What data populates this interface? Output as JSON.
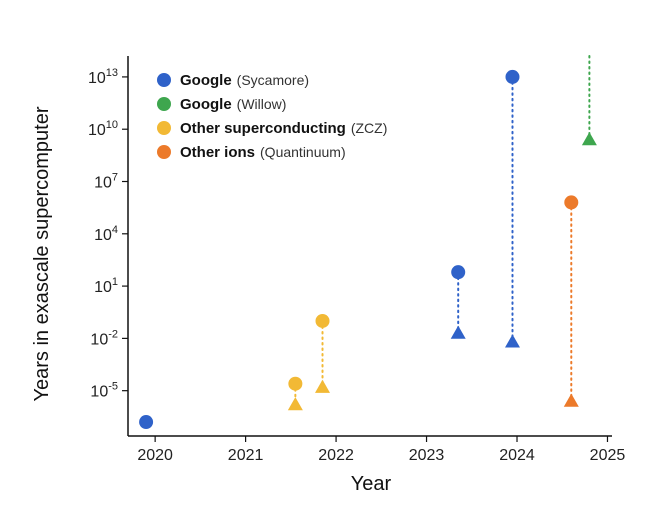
{
  "chart_data": {
    "type": "scatter",
    "title": "",
    "xlabel": "Year",
    "ylabel": "Years in exascale supercomputer",
    "xlim": [
      2019.7,
      2025.05
    ],
    "ylim_log10": [
      -7.6,
      14.2
    ],
    "y_scale": "log",
    "grid": false,
    "legend_position": "top-left",
    "x_ticks": [
      {
        "value": 2020,
        "label": "2020"
      },
      {
        "value": 2021,
        "label": "2021"
      },
      {
        "value": 2022,
        "label": "2022"
      },
      {
        "value": 2023,
        "label": "2023"
      },
      {
        "value": 2024,
        "label": "2024"
      },
      {
        "value": 2025,
        "label": "2025"
      }
    ],
    "y_ticks": [
      {
        "exp": 13,
        "base": "10",
        "sup": "13"
      },
      {
        "exp": 10,
        "base": "10",
        "sup": "10"
      },
      {
        "exp": 7,
        "base": "10",
        "sup": "7"
      },
      {
        "exp": 4,
        "base": "10",
        "sup": "4"
      },
      {
        "exp": 1,
        "base": "10",
        "sup": "1"
      },
      {
        "exp": -2,
        "base": "10",
        "sup": "-2"
      },
      {
        "exp": -5,
        "base": "10",
        "sup": "-5"
      }
    ],
    "series": [
      {
        "name": "Google",
        "detail": "(Sycamore)",
        "color": "#2f62c9",
        "points": [
          {
            "x": 2019.9,
            "y_exp": -6.8,
            "marker": "circle"
          },
          {
            "x": 2023.35,
            "y_exp": 1.8,
            "marker": "circle"
          },
          {
            "x": 2023.35,
            "y_exp": -1.7,
            "marker": "triangle"
          },
          {
            "x": 2023.95,
            "y_exp": 13.0,
            "marker": "circle"
          },
          {
            "x": 2023.95,
            "y_exp": -2.2,
            "marker": "triangle"
          }
        ],
        "links": [
          {
            "x": 2023.35,
            "from_exp": 1.8,
            "to_exp": -1.7
          },
          {
            "x": 2023.95,
            "from_exp": 13.0,
            "to_exp": -2.2
          }
        ]
      },
      {
        "name": "Google",
        "detail": "(Willow)",
        "color": "#3ea64e",
        "points": [
          {
            "x": 2024.8,
            "y_exp": 9.4,
            "marker": "triangle"
          }
        ],
        "links": [
          {
            "x": 2024.8,
            "from_exp": 14.2,
            "to_exp": 9.4
          }
        ]
      },
      {
        "name": "Other superconducting",
        "detail": "(ZCZ)",
        "color": "#f2b935",
        "points": [
          {
            "x": 2021.55,
            "y_exp": -4.6,
            "marker": "circle"
          },
          {
            "x": 2021.55,
            "y_exp": -5.8,
            "marker": "triangle"
          },
          {
            "x": 2021.85,
            "y_exp": -1.0,
            "marker": "circle"
          },
          {
            "x": 2021.85,
            "y_exp": -4.8,
            "marker": "triangle"
          }
        ],
        "links": [
          {
            "x": 2021.55,
            "from_exp": -4.6,
            "to_exp": -5.8
          },
          {
            "x": 2021.85,
            "from_exp": -1.0,
            "to_exp": -4.8
          }
        ]
      },
      {
        "name": "Other ions",
        "detail": "(Quantinuum)",
        "color": "#ec7a2a",
        "points": [
          {
            "x": 2024.6,
            "y_exp": 5.8,
            "marker": "circle"
          },
          {
            "x": 2024.6,
            "y_exp": -5.6,
            "marker": "triangle"
          }
        ],
        "links": [
          {
            "x": 2024.6,
            "from_exp": 5.8,
            "to_exp": -5.6
          }
        ]
      }
    ]
  }
}
